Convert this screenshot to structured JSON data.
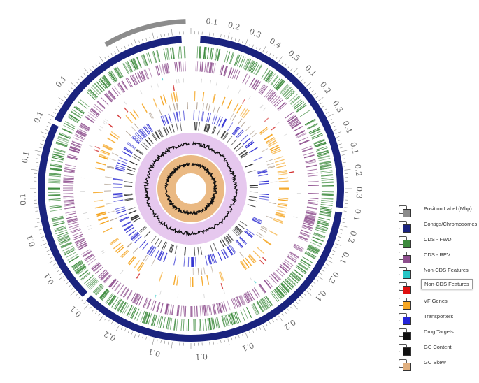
{
  "legend": {
    "items": [
      {
        "label": "Position Label (Mbp)",
        "color": "#8c8c8c"
      },
      {
        "label": "Contigs/Chromosomes",
        "color": "#1a237e"
      },
      {
        "label": "CDS - FWD",
        "color": "#3d8b3d"
      },
      {
        "label": "CDS - REV",
        "color": "#8e4f8e"
      },
      {
        "label": "Non-CDS Features",
        "color": "#26c6c6"
      },
      {
        "label": "Non-CDS Features",
        "color": "#e01010"
      },
      {
        "label": "VF Genes",
        "color": "#f5a623"
      },
      {
        "label": "Transporters",
        "color": "#2525d9"
      },
      {
        "label": "Drug Targets",
        "color": "#111111"
      },
      {
        "label": "GC Content",
        "color": "#111111"
      },
      {
        "label": "GC Skew",
        "color": "#e0b080"
      }
    ]
  },
  "ticks": {
    "right_labels": [
      "0.1",
      "0.2",
      "0.3",
      "0.4",
      "0.5",
      "0.1",
      "0.2",
      "0.3",
      "0.4",
      "0.1",
      "0.2",
      "0.3",
      "0.1",
      "0.2",
      "0.1",
      "0.2",
      "0.1"
    ],
    "left_labels": [
      "0.1",
      "0.1",
      "0.1",
      "0.1",
      "0.1",
      "0.1",
      "0.1"
    ],
    "bottom_labels": [
      "0.2",
      "0.1",
      "0.1",
      "0.1",
      "0.2"
    ]
  },
  "colors": {
    "contig": "#1a237e",
    "position": "#8c8c8c",
    "cds_fwd": "#3d8b3d",
    "cds_rev": "#8e4f8e",
    "noncds_cyan": "#26c6c6",
    "noncds_red": "#d32f2f",
    "vf": "#f5a623",
    "transporter": "#3232d2",
    "drug": "#222222",
    "gc_content_bg": "#e6c8ee",
    "gc_skew_bg": "#eab983",
    "gc_line": "#111111"
  }
}
